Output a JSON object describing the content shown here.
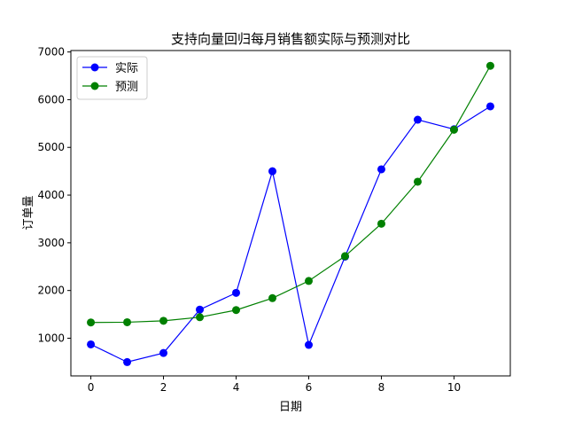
{
  "chart_data": {
    "type": "line",
    "title": "支持向量回归每月销售额实际与预测对比",
    "xlabel": "日期",
    "ylabel": "订单量",
    "x": [
      0,
      1,
      2,
      3,
      4,
      5,
      6,
      7,
      8,
      9,
      10,
      11
    ],
    "xlim": [
      -0.55,
      11.55
    ],
    "ylim": [
      210,
      7030
    ],
    "xticks": [
      0,
      2,
      4,
      6,
      8,
      10
    ],
    "yticks": [
      1000,
      2000,
      3000,
      4000,
      5000,
      6000,
      7000
    ],
    "grid": false,
    "legend_position": "upper-left",
    "series": [
      {
        "name": "实际",
        "color": "#0000ff",
        "marker": "circle",
        "values": [
          870,
          500,
          690,
          1600,
          1950,
          4500,
          860,
          2710,
          4540,
          5580,
          5380,
          5860
        ]
      },
      {
        "name": "预测",
        "color": "#008000",
        "marker": "circle",
        "values": [
          1330,
          1335,
          1365,
          1440,
          1590,
          1840,
          2200,
          2720,
          3400,
          4280,
          5370,
          6710
        ]
      }
    ]
  }
}
